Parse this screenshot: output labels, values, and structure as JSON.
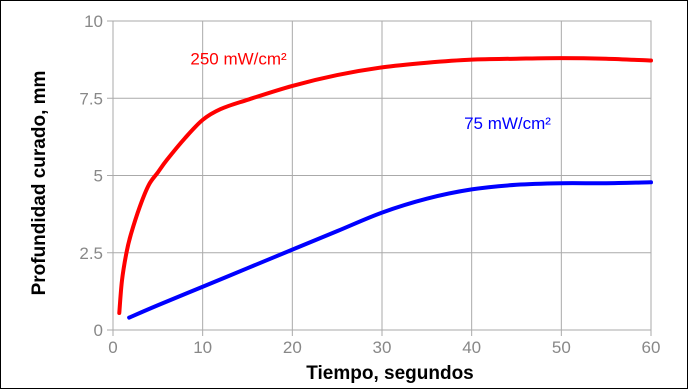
{
  "chart_data": {
    "type": "line",
    "title": "",
    "xlabel": "Tiempo, segundos",
    "ylabel": "Profundidad curado,  mm",
    "xlim": [
      0,
      60
    ],
    "ylim": [
      0,
      10
    ],
    "grid": true,
    "x_ticks": [
      0,
      10,
      20,
      30,
      40,
      50,
      60
    ],
    "y_ticks": [
      0,
      2.5,
      5,
      7.5,
      10
    ],
    "x_tick_labels": [
      "0",
      "10",
      "20",
      "30",
      "40",
      "50",
      "60"
    ],
    "y_tick_labels": [
      "0",
      "2.5",
      "5",
      "7.5",
      "10"
    ],
    "series": [
      {
        "name": "250 mW/cm²",
        "color": "#ff0000",
        "points": [
          [
            0.7,
            0.55
          ],
          [
            1,
            1.6
          ],
          [
            1.5,
            2.5
          ],
          [
            2,
            3.1
          ],
          [
            3,
            4.0
          ],
          [
            4,
            4.7
          ],
          [
            5,
            5.1
          ],
          [
            6,
            5.5
          ],
          [
            8,
            6.2
          ],
          [
            10,
            6.8
          ],
          [
            12,
            7.15
          ],
          [
            15,
            7.45
          ],
          [
            20,
            7.9
          ],
          [
            25,
            8.25
          ],
          [
            30,
            8.5
          ],
          [
            35,
            8.65
          ],
          [
            40,
            8.75
          ],
          [
            45,
            8.78
          ],
          [
            50,
            8.8
          ],
          [
            55,
            8.78
          ],
          [
            60,
            8.72
          ]
        ]
      },
      {
        "name": "75 mW/cm²",
        "color": "#0000ff",
        "points": [
          [
            1.8,
            0.4
          ],
          [
            5,
            0.8
          ],
          [
            10,
            1.4
          ],
          [
            15,
            2.0
          ],
          [
            20,
            2.6
          ],
          [
            25,
            3.2
          ],
          [
            30,
            3.8
          ],
          [
            35,
            4.25
          ],
          [
            40,
            4.55
          ],
          [
            45,
            4.7
          ],
          [
            50,
            4.75
          ],
          [
            55,
            4.75
          ],
          [
            60,
            4.78
          ]
        ]
      }
    ],
    "annotations": [
      {
        "text": "250 mW/cm²",
        "color": "#ff0000",
        "x": 14,
        "y": 8.6
      },
      {
        "text": "75 mW/cm²",
        "color": "#0000ff",
        "x": 44,
        "y": 6.5
      }
    ]
  }
}
